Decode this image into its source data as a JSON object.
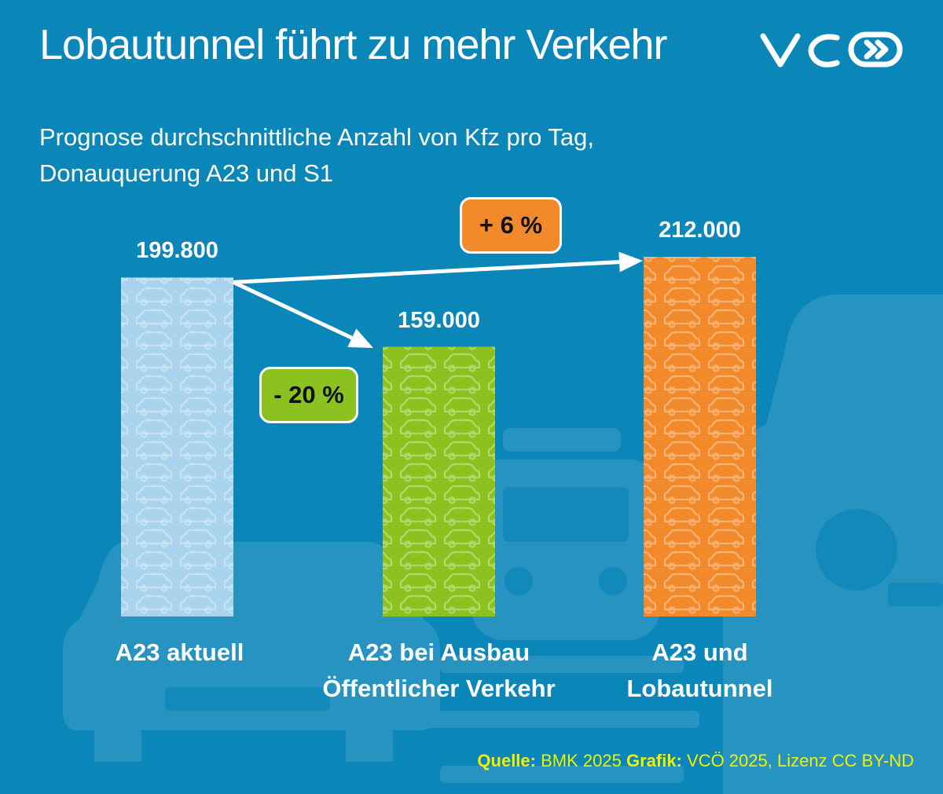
{
  "header": {
    "title": "Lobautunnel führt zu mehr Verkehr",
    "subtitle_line1": "Prognose durchschnittliche Anzahl von Kfz pro Tag,",
    "subtitle_line2": "Donauquerung A23 und S1",
    "logo_text": "VCÖ"
  },
  "colors": {
    "background": "#0a86b9",
    "bar_current": "#a9d3ec",
    "bar_public_transport": "#8cc21f",
    "bar_tunnel": "#f28a2c",
    "badge_increase": "#f28a2c",
    "badge_decrease": "#8cc21f",
    "source_text": "#f2f200"
  },
  "chart_data": {
    "type": "bar",
    "categories": [
      "A23 aktuell",
      "A23 bei Ausbau Öffentlicher Verkehr",
      "A23 und Lobautunnel"
    ],
    "values": [
      199800,
      159000,
      212000
    ],
    "value_labels": [
      "199.800",
      "159.000",
      "212.000"
    ],
    "annotations": [
      {
        "text": "- 20 %",
        "from": "A23 aktuell",
        "to": "A23 bei Ausbau Öffentlicher Verkehr"
      },
      {
        "text": "+ 6 %",
        "from": "A23 aktuell",
        "to": "A23 und Lobautunnel"
      }
    ],
    "title": "Lobautunnel führt zu mehr Verkehr",
    "subtitle": "Prognose durchschnittliche Anzahl von Kfz pro Tag, Donauquerung A23 und S1",
    "xlabel": "",
    "ylabel": "",
    "ylim": [
      0,
      212000
    ],
    "grid": false,
    "legend": "none"
  },
  "categories_display": [
    {
      "line1": "A23 aktuell",
      "line2": ""
    },
    {
      "line1": "A23 bei Ausbau",
      "line2": "Öffentlicher Verkehr"
    },
    {
      "line1": "A23 und",
      "line2": "Lobautunnel"
    }
  ],
  "badges": {
    "increase": "+ 6 %",
    "decrease": "- 20 %"
  },
  "source": {
    "quelle_label": "Quelle:",
    "quelle_value": "BMK 2025",
    "grafik_label": "Grafik:",
    "grafik_value": "VCÖ 2025, Lizenz CC BY-ND"
  },
  "background_icons": [
    "car-silhouette-icon",
    "train-silhouette-icon",
    "car-front-silhouette-icon"
  ]
}
